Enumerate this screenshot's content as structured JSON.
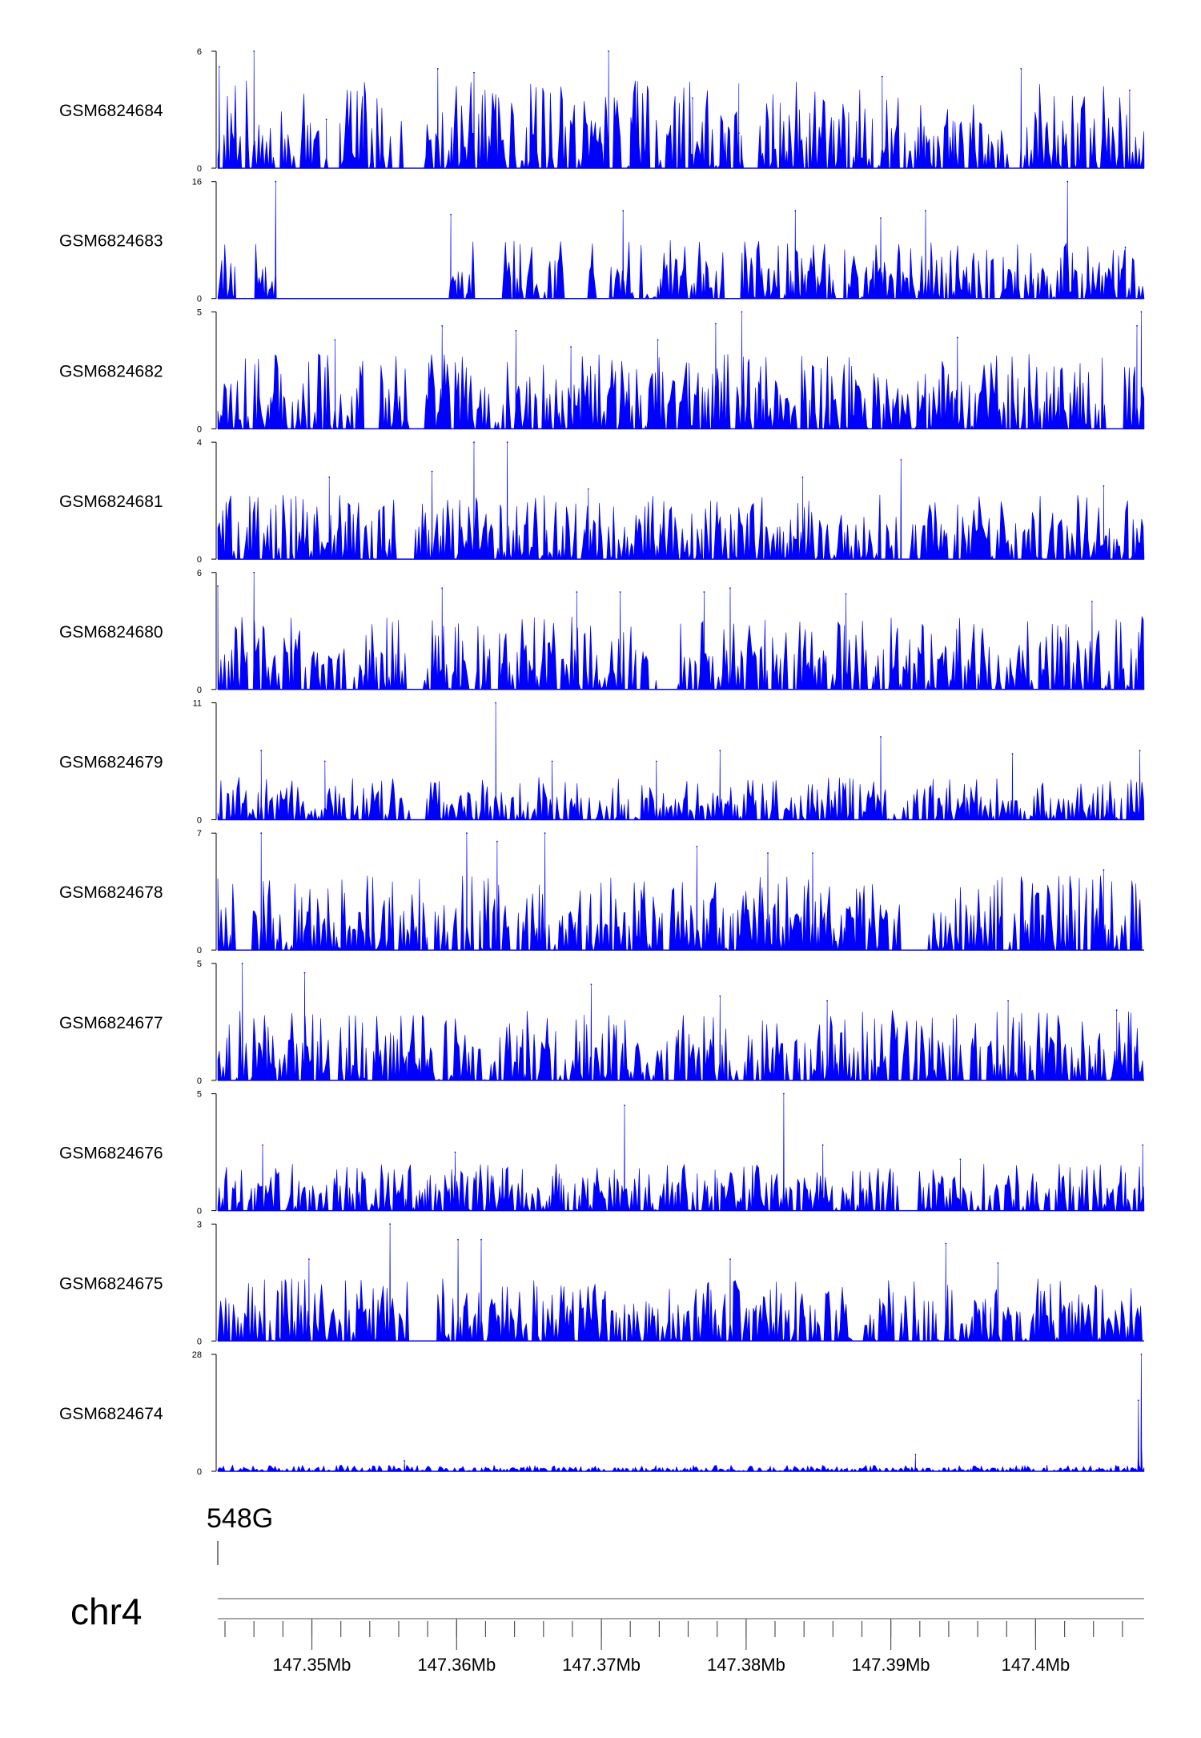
{
  "chart_data": {
    "type": "area",
    "chromosome": "chr4",
    "x_range_mb": [
      147.3435,
      147.4075
    ],
    "x_ticks_mb": [
      147.35,
      147.36,
      147.37,
      147.38,
      147.39,
      147.4
    ],
    "x_tick_labels": [
      "147.35Mb",
      "147.36Mb",
      "147.37Mb",
      "147.38Mb",
      "147.39Mb",
      "147.4Mb"
    ],
    "minor_tick_step_mb": 0.002,
    "gene": {
      "label": "548G",
      "position_mb": 147.3435
    },
    "tracks": [
      {
        "name": "GSM6824684",
        "ylim": [
          0,
          6
        ],
        "yticks": [
          "0",
          "6"
        ],
        "peaks": [
          [
            147.3436,
            5.2
          ],
          [
            147.346,
            6
          ],
          [
            147.351,
            2.5
          ],
          [
            147.3587,
            5.1
          ],
          [
            147.3612,
            4.9
          ],
          [
            147.3705,
            6
          ],
          [
            147.3763,
            3.6
          ],
          [
            147.3795,
            1.8
          ],
          [
            147.3894,
            4.7
          ],
          [
            147.399,
            5.1
          ],
          [
            147.4065,
            4.0
          ]
        ],
        "bg_max": 4.5,
        "gap_ranges": [
          [
            147.3505,
            147.3519
          ],
          [
            147.3563,
            147.3578
          ],
          [
            147.3798,
            147.3808
          ],
          [
            147.3982,
            147.3992
          ]
        ]
      },
      {
        "name": "GSM6824683",
        "ylim": [
          0,
          16
        ],
        "yticks": [
          "0",
          "16"
        ],
        "peaks": [
          [
            147.3475,
            16
          ],
          [
            147.3596,
            11.5
          ],
          [
            147.3715,
            12
          ],
          [
            147.3834,
            12
          ],
          [
            147.3893,
            11
          ],
          [
            147.3924,
            12
          ],
          [
            147.4022,
            16
          ],
          [
            147.4062,
            7
          ]
        ],
        "bg_max": 8,
        "gap_ranges": [
          [
            147.3447,
            147.3461
          ],
          [
            147.3475,
            147.3542
          ],
          [
            147.3542,
            147.3595
          ],
          [
            147.3614,
            147.3631
          ],
          [
            147.3674,
            147.3691
          ],
          [
            147.3784,
            147.3796
          ]
        ]
      },
      {
        "name": "GSM6824682",
        "ylim": [
          0,
          5
        ],
        "yticks": [
          "0",
          "5"
        ],
        "peaks": [
          [
            147.3516,
            3.8
          ],
          [
            147.359,
            4.4
          ],
          [
            147.3641,
            4.2
          ],
          [
            147.3679,
            3.5
          ],
          [
            147.3739,
            3.8
          ],
          [
            147.3797,
            5
          ],
          [
            147.3779,
            4.5
          ],
          [
            147.3946,
            3.9
          ],
          [
            147.4073,
            5
          ],
          [
            147.407,
            4.4
          ]
        ],
        "bg_max": 3.2,
        "gap_ranges": [
          [
            147.3536,
            147.3547
          ],
          [
            147.3566,
            147.3577
          ],
          [
            147.4048,
            147.4061
          ]
        ]
      },
      {
        "name": "GSM6824681",
        "ylim": [
          0,
          4
        ],
        "yticks": [
          "0",
          "4"
        ],
        "peaks": [
          [
            147.3612,
            4
          ],
          [
            147.3635,
            4
          ],
          [
            147.3583,
            3
          ],
          [
            147.3512,
            2.8
          ],
          [
            147.3691,
            2.4
          ],
          [
            147.3839,
            2.8
          ],
          [
            147.3907,
            3.4
          ],
          [
            147.4047,
            2.5
          ]
        ],
        "bg_max": 2.2,
        "gap_ranges": [
          [
            147.3559,
            147.3571
          ],
          [
            147.3904,
            147.3913
          ]
        ]
      },
      {
        "name": "GSM6824680",
        "ylim": [
          0,
          6
        ],
        "yticks": [
          "0",
          "6"
        ],
        "peaks": [
          [
            147.346,
            6
          ],
          [
            147.3435,
            5.3
          ],
          [
            147.359,
            5.2
          ],
          [
            147.3683,
            5
          ],
          [
            147.3713,
            5
          ],
          [
            147.3771,
            5
          ],
          [
            147.3789,
            5.2
          ],
          [
            147.3869,
            4.9
          ],
          [
            147.4039,
            4.5
          ]
        ],
        "bg_max": 3.8,
        "gap_ranges": [
          [
            147.3565,
            147.3576
          ],
          [
            147.3739,
            147.3752
          ]
        ]
      },
      {
        "name": "GSM6824679",
        "ylim": [
          0,
          11
        ],
        "yticks": [
          "0",
          "11"
        ],
        "peaks": [
          [
            147.3627,
            11
          ],
          [
            147.3465,
            6.5
          ],
          [
            147.3509,
            5.5
          ],
          [
            147.3666,
            5.5
          ],
          [
            147.3738,
            5.5
          ],
          [
            147.3782,
            6.5
          ],
          [
            147.3893,
            7.8
          ],
          [
            147.3984,
            6.2
          ],
          [
            147.4072,
            6.5
          ]
        ],
        "bg_max": 4,
        "gap_ranges": [
          [
            147.3568,
            147.3578
          ]
        ]
      },
      {
        "name": "GSM6824678",
        "ylim": [
          0,
          7
        ],
        "yticks": [
          "0",
          "7"
        ],
        "peaks": [
          [
            147.3465,
            7
          ],
          [
            147.3607,
            7
          ],
          [
            147.3628,
            6.5
          ],
          [
            147.3661,
            7
          ],
          [
            147.3766,
            6.2
          ],
          [
            147.3815,
            5.8
          ],
          [
            147.3846,
            5.8
          ],
          [
            147.4047,
            4.8
          ]
        ],
        "bg_max": 4.5,
        "gap_ranges": [
          [
            147.3447,
            147.3458
          ],
          [
            147.3908,
            147.3922
          ]
        ]
      },
      {
        "name": "GSM6824677",
        "ylim": [
          0,
          5
        ],
        "yticks": [
          "0",
          "5"
        ],
        "peaks": [
          [
            147.3452,
            5
          ],
          [
            147.3495,
            4.6
          ],
          [
            147.3693,
            4.1
          ],
          [
            147.3782,
            3.6
          ],
          [
            147.3856,
            3.4
          ],
          [
            147.3981,
            3.4
          ],
          [
            147.4056,
            3
          ]
        ],
        "bg_max": 3,
        "gap_ranges": []
      },
      {
        "name": "GSM6824676",
        "ylim": [
          0,
          5
        ],
        "yticks": [
          "0",
          "5"
        ],
        "peaks": [
          [
            147.3716,
            4.5
          ],
          [
            147.3826,
            5
          ],
          [
            147.3466,
            2.8
          ],
          [
            147.3599,
            2.5
          ],
          [
            147.3853,
            2.8
          ],
          [
            147.3948,
            2.2
          ],
          [
            147.4074,
            2.8
          ]
        ],
        "bg_max": 2,
        "gap_ranges": [
          [
            147.3905,
            147.3918
          ]
        ]
      },
      {
        "name": "GSM6824675",
        "ylim": [
          0,
          3
        ],
        "yticks": [
          "0",
          "3"
        ],
        "peaks": [
          [
            147.3554,
            3
          ],
          [
            147.3601,
            2.6
          ],
          [
            147.3617,
            2.6
          ],
          [
            147.3498,
            2.1
          ],
          [
            147.3789,
            2.1
          ],
          [
            147.3938,
            2.5
          ],
          [
            147.3974,
            2.0
          ]
        ],
        "bg_max": 1.6,
        "gap_ranges": [
          [
            147.3566,
            147.3586
          ],
          [
            147.3873,
            147.3882
          ]
        ]
      },
      {
        "name": "GSM6824674",
        "ylim": [
          0,
          28
        ],
        "yticks": [
          "0",
          "28"
        ],
        "peaks": [
          [
            147.4073,
            28
          ],
          [
            147.4071,
            17
          ],
          [
            147.3917,
            4
          ],
          [
            147.3564,
            2.5
          ]
        ],
        "bg_max": 1.5,
        "gap_ranges": []
      }
    ]
  }
}
